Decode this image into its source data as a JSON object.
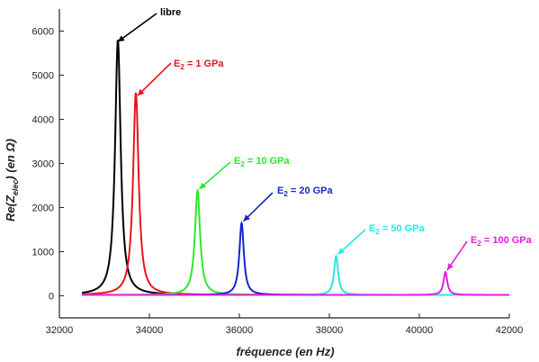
{
  "chart_data": {
    "type": "line",
    "xlabel": "fréquence (en Hz)",
    "ylabel_parts": {
      "prefix": "Re(Z",
      "subscript": "elec",
      "suffix": ") (en Ω)"
    },
    "xlim": [
      32000,
      42000
    ],
    "ylim": [
      -500,
      6500
    ],
    "xticks": [
      32000,
      34000,
      36000,
      38000,
      40000,
      42000
    ],
    "yticks": [
      0,
      1000,
      2000,
      3000,
      4000,
      5000,
      6000
    ],
    "x_range": [
      32500,
      42000
    ],
    "series": [
      {
        "name": "libre",
        "label_parts": [
          "libre"
        ],
        "color": "#000000",
        "peak_x": 33300,
        "peak_y": 5800,
        "width": 75,
        "baseline": 20
      },
      {
        "name": "E2 = 1 GPa",
        "label_parts": [
          "E",
          "2",
          " = 1 GPa"
        ],
        "color": "#e8141e",
        "peak_x": 33700,
        "peak_y": 4600,
        "width": 75,
        "baseline": 20
      },
      {
        "name": "E2 = 10 GPa",
        "label_parts": [
          "E",
          "2",
          " = 10 GPa"
        ],
        "color": "#2ee82e",
        "peak_x": 35070,
        "peak_y": 2380,
        "width": 70,
        "baseline": 20
      },
      {
        "name": "E2 = 20 GPa",
        "label_parts": [
          "E",
          "2",
          " = 20 GPa"
        ],
        "color": "#1428c8",
        "peak_x": 36050,
        "peak_y": 1650,
        "width": 60,
        "baseline": 20
      },
      {
        "name": "E2 = 50 GPa",
        "label_parts": [
          "E",
          "2",
          " = 50 GPa"
        ],
        "color": "#22e8e8",
        "peak_x": 38150,
        "peak_y": 900,
        "width": 55,
        "baseline": 20
      },
      {
        "name": "E2 = 100 GPa",
        "label_parts": [
          "E",
          "2",
          " = 100 GPa"
        ],
        "color": "#e020e0",
        "peak_x": 40580,
        "peak_y": 540,
        "width": 50,
        "baseline": 20
      }
    ],
    "grid": false,
    "legend": "annotations with arrows"
  }
}
